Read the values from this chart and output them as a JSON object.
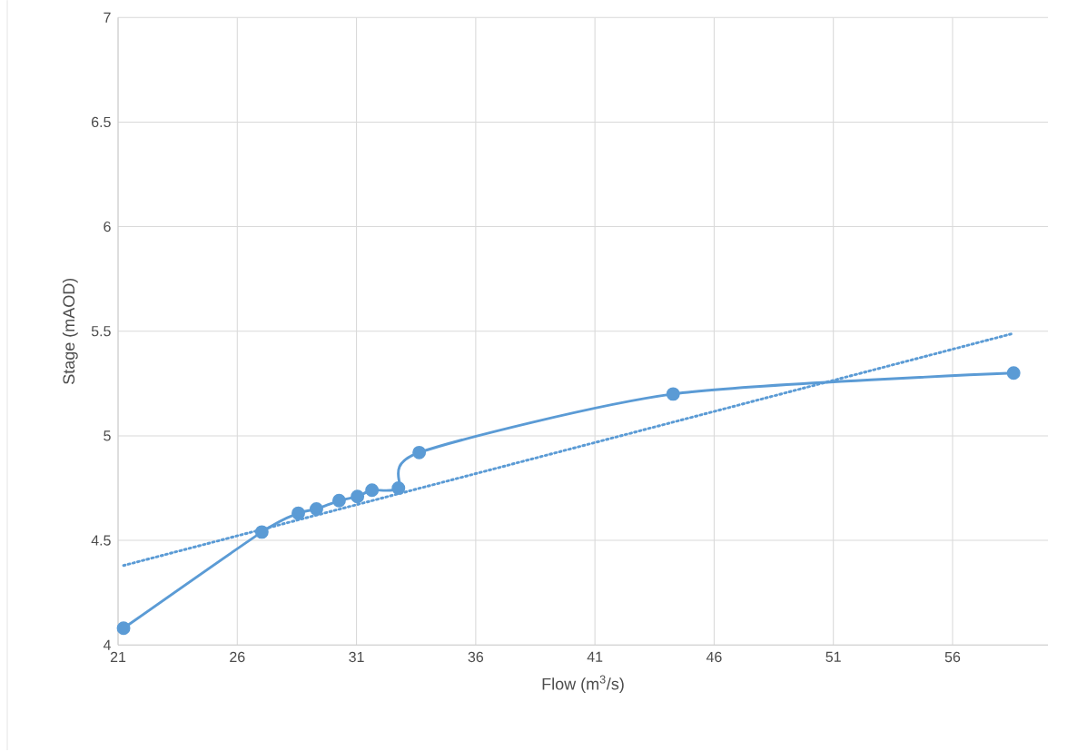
{
  "chart_data": {
    "type": "line",
    "xlabel": "Flow (m$^{3}$/s)",
    "ylabel": "Stage (mAOD)",
    "xlim": [
      21,
      60
    ],
    "xticks": [
      21,
      26,
      31,
      36,
      41,
      46,
      51,
      56
    ],
    "ylim": [
      4,
      7
    ],
    "yticks": [
      4,
      4.5,
      5,
      5.5,
      6,
      6.5,
      7
    ],
    "grid": true,
    "series": [
      {
        "color": "#5b9bd5",
        "marker": "circle",
        "line_style": "solid",
        "x": [
          21.23,
          27.03,
          28.56,
          29.32,
          30.27,
          31.04,
          31.65,
          32.76,
          33.63,
          44.28,
          58.56
        ],
        "values": [
          4.08,
          4.54,
          4.63,
          4.65,
          4.69,
          4.71,
          4.74,
          4.75,
          4.92,
          5.2,
          5.3
        ]
      },
      {
        "color": "#5b9bd5",
        "marker": "none",
        "line_style": "dotted",
        "x": [
          21.23,
          58.56
        ],
        "values": [
          4.38,
          5.49
        ]
      }
    ]
  }
}
